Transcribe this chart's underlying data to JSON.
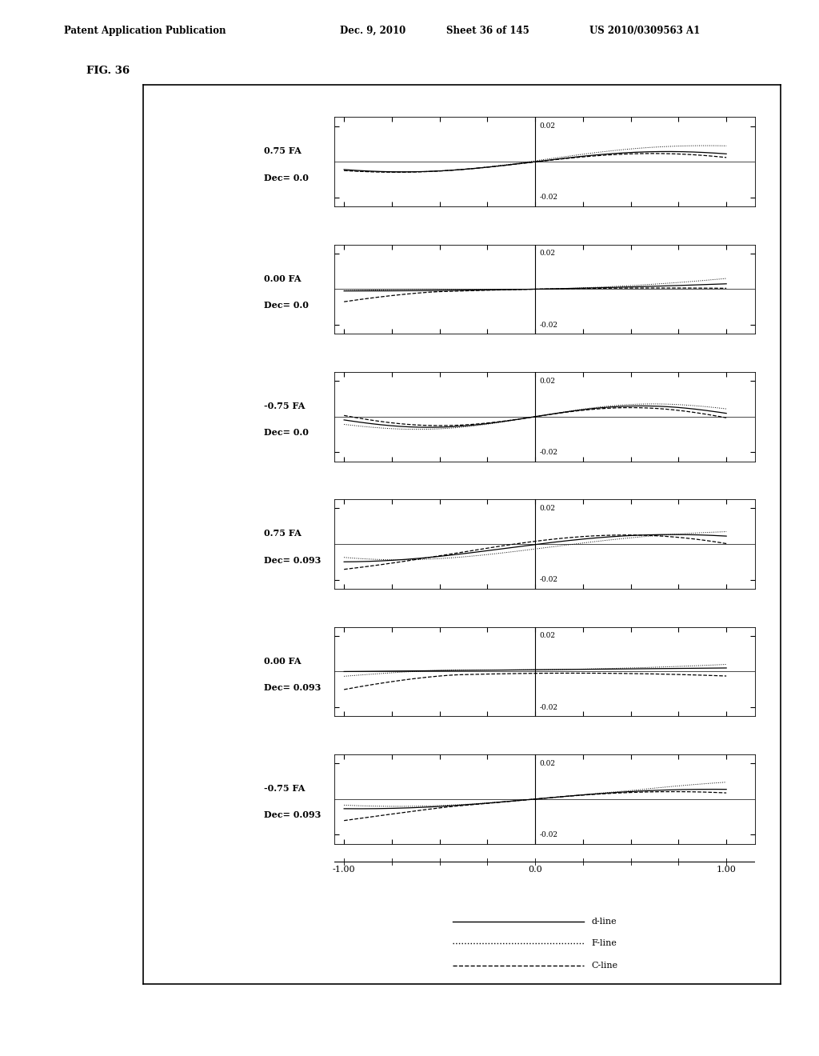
{
  "header_left": "Patent Application Publication",
  "header_mid": "Dec. 9, 2010",
  "header_mid2": "Sheet 36 of 145",
  "header_right": "US 2010/0309563 A1",
  "fig_label": "FIG. 36",
  "subplots": [
    {
      "label_line1": "0.75 FA",
      "label_line2": "Dec= 0.0"
    },
    {
      "label_line1": "0.00 FA",
      "label_line2": "Dec= 0.0"
    },
    {
      "label_line1": "-0.75 FA",
      "label_line2": "Dec= 0.0"
    },
    {
      "label_line1": "0.75 FA",
      "label_line2": "Dec= 0.093"
    },
    {
      "label_line1": "0.00 FA",
      "label_line2": "Dec= 0.093"
    },
    {
      "label_line1": "-0.75 FA",
      "label_line2": "Dec= 0.093"
    }
  ],
  "ylim": [
    -0.025,
    0.025
  ],
  "ytick_vals": [
    -0.02,
    0.02
  ],
  "ytick_labels": [
    "-0.02",
    "0.02"
  ],
  "xtick_vals": [
    -1.0,
    -0.75,
    -0.5,
    -0.25,
    0.0,
    0.25,
    0.5,
    0.75,
    1.0
  ],
  "xlabel_vals": [
    -1.0,
    0.0,
    1.0
  ],
  "xlabel_strs": [
    "-1.00",
    "0.0",
    "1.00"
  ],
  "legend_labels": [
    "d-line",
    "F-line",
    "C-line"
  ],
  "legend_styles": [
    "-",
    ":",
    "--"
  ]
}
